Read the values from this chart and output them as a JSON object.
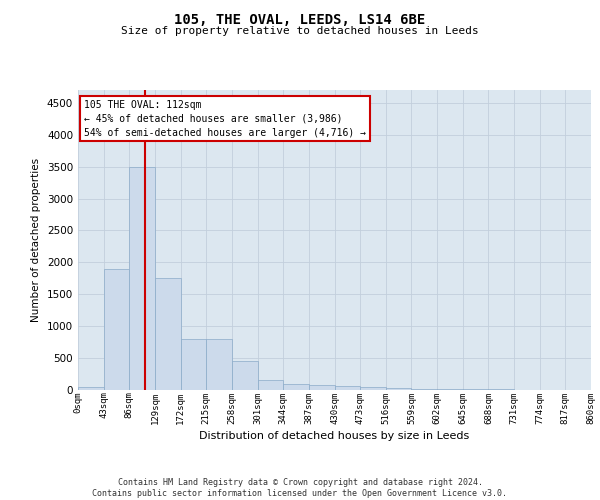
{
  "title": "105, THE OVAL, LEEDS, LS14 6BE",
  "subtitle": "Size of property relative to detached houses in Leeds",
  "xlabel": "Distribution of detached houses by size in Leeds",
  "ylabel": "Number of detached properties",
  "bar_color": "#ccdaeb",
  "bar_edge_color": "#8aaac8",
  "grid_color": "#c2cfdc",
  "background_color": "#dce7f0",
  "vline_x": 112,
  "vline_color": "#cc0000",
  "annotation_text": "105 THE OVAL: 112sqm\n← 45% of detached houses are smaller (3,986)\n54% of semi-detached houses are larger (4,716) →",
  "bin_edges": [
    0,
    43,
    86,
    129,
    172,
    215,
    258,
    301,
    344,
    387,
    430,
    473,
    516,
    559,
    602,
    645,
    688,
    731,
    774,
    817,
    860
  ],
  "bar_heights": [
    50,
    1900,
    3500,
    1750,
    800,
    800,
    450,
    160,
    100,
    80,
    60,
    50,
    30,
    20,
    15,
    10,
    8,
    5,
    3,
    2
  ],
  "ylim": [
    0,
    4700
  ],
  "yticks": [
    0,
    500,
    1000,
    1500,
    2000,
    2500,
    3000,
    3500,
    4000,
    4500
  ],
  "footer_line1": "Contains HM Land Registry data © Crown copyright and database right 2024.",
  "footer_line2": "Contains public sector information licensed under the Open Government Licence v3.0."
}
